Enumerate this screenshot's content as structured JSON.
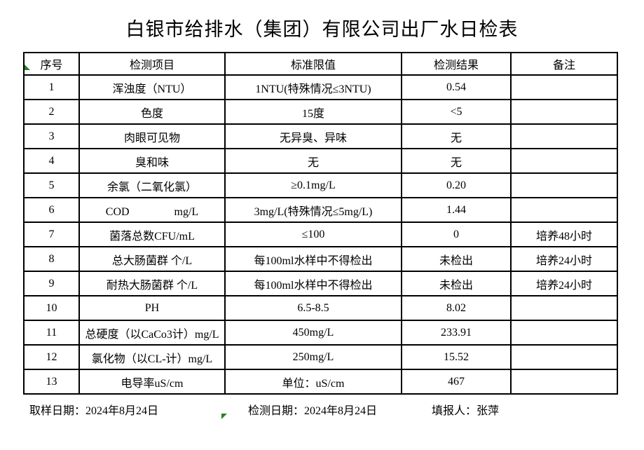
{
  "title": "白银市给排水（集团）有限公司出厂水日检表",
  "colors": {
    "background": "#ffffff",
    "border": "#000000",
    "text": "#000000",
    "marker_green": "#218521"
  },
  "markers": {
    "top_left": "excel-green-triangle",
    "bottom_center": "excel-green-triangle"
  },
  "table": {
    "headers": [
      "序号",
      "检测项目",
      "标准限值",
      "检测结果",
      "备注"
    ],
    "rows": [
      {
        "no": "1",
        "item": "浑浊度（NTU）",
        "limit": "1NTU(特殊情况≤3NTU)",
        "result": "0.54",
        "remark": ""
      },
      {
        "no": "2",
        "item": "色度",
        "limit": "15度",
        "result": "<5",
        "remark": ""
      },
      {
        "no": "3",
        "item": "肉眼可见物",
        "limit": "无异臭、异味",
        "result": "无",
        "remark": ""
      },
      {
        "no": "4",
        "item": "臭和味",
        "limit": "无",
        "result": "无",
        "remark": ""
      },
      {
        "no": "5",
        "item": "余氯（二氧化氯）",
        "limit": "≥0.1mg/L",
        "result": "0.20",
        "remark": ""
      },
      {
        "no": "6",
        "item": "COD　　　　mg/L",
        "limit": "3mg/L(特殊情况≤5mg/L)",
        "result": "1.44",
        "remark": ""
      },
      {
        "no": "7",
        "item": "菌落总数CFU/mL",
        "limit": "≤100",
        "result": "0",
        "remark": "培养48小时"
      },
      {
        "no": "8",
        "item": "总大肠菌群 个/L",
        "limit": "每100ml水样中不得检出",
        "result": "未检出",
        "remark": "培养24小时"
      },
      {
        "no": "9",
        "item": "耐热大肠菌群 个/L",
        "limit": "每100ml水样中不得检出",
        "result": "未检出",
        "remark": "培养24小时"
      },
      {
        "no": "10",
        "item": "PH",
        "limit": "6.5-8.5",
        "result": "8.02",
        "remark": ""
      },
      {
        "no": "11",
        "item": "总硬度（以CaCo3计）mg/L",
        "limit": "450mg/L",
        "result": "233.91",
        "remark": ""
      },
      {
        "no": "12",
        "item": "氯化物（以CL-计）mg/L",
        "limit": "250mg/L",
        "result": "15.52",
        "remark": ""
      },
      {
        "no": "13",
        "item": "电导率uS/cm",
        "limit": "单位：uS/cm",
        "result": "467",
        "remark": ""
      }
    ]
  },
  "footer": {
    "sampling": "取样日期：2024年8月24日",
    "testing": "检测日期：2024年8月24日",
    "reporter": "填报人：张萍"
  }
}
